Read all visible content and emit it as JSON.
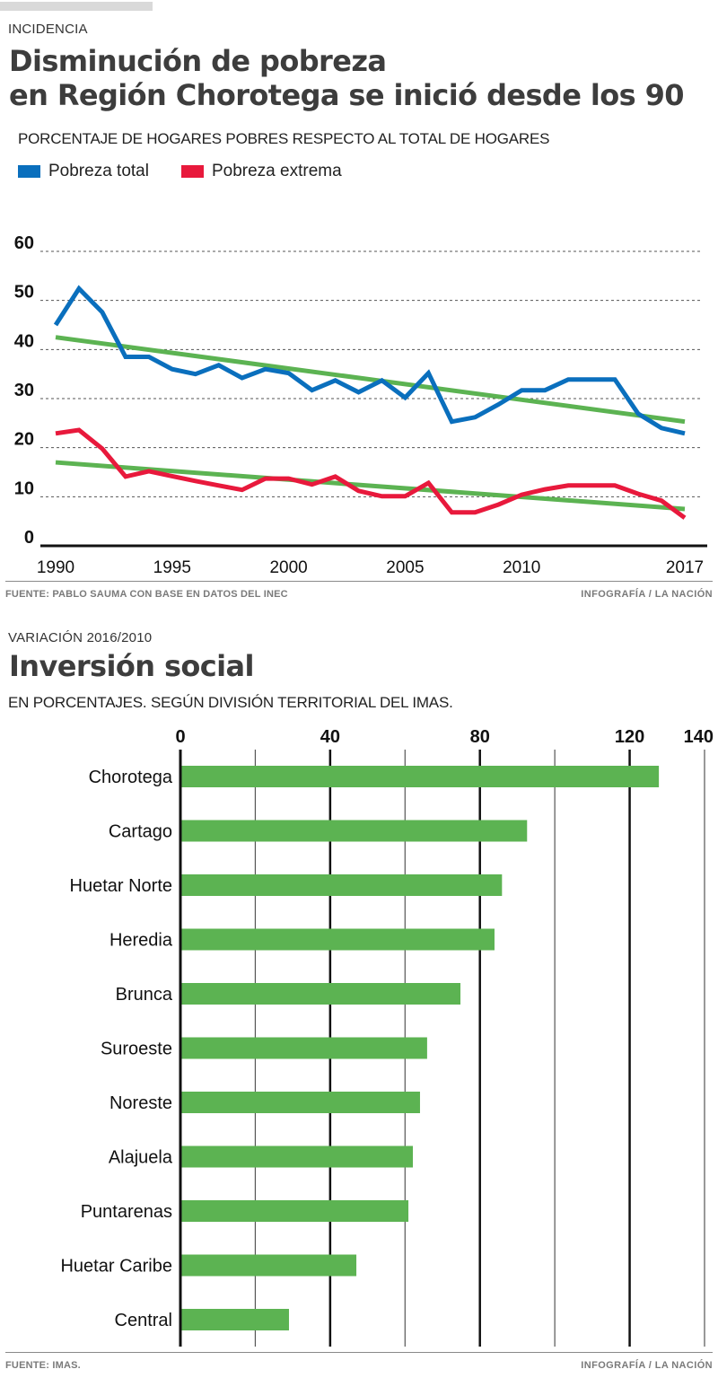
{
  "header": {
    "kicker": "INCIDENCIA",
    "title_line1": "Disminución de pobreza",
    "title_line2": "en Región Chorotega se inició desde los 90",
    "subtitle": "PORCENTAJE DE HOGARES POBRES RESPECTO AL TOTAL DE HOGARES"
  },
  "colors": {
    "total": "#0a6fbd",
    "extrema": "#e8193c",
    "trend": "#5cb352",
    "bar": "#5cb352"
  },
  "footer1": {
    "source": "FUENTE: PABLO SAUMA CON BASE EN DATOS DEL INEC",
    "credit": "INFOGRAFÍA / LA NACIÓN"
  },
  "section2": {
    "kicker": "VARIACIÓN 2016/2010",
    "title": "Inversión social",
    "subtitle": "EN PORCENTAJES. SEGÚN DIVISIÓN TERRITORIAL DEL IMAS."
  },
  "footer2": {
    "source": "FUENTE: IMAS.",
    "credit": "INFOGRAFÍA / LA NACIÓN"
  },
  "chart_data": [
    {
      "type": "line",
      "title": "PORCENTAJE DE HOGARES POBRES RESPECTO AL TOTAL DE HOGARES",
      "xlabel": "",
      "ylabel": "",
      "x": [
        1990,
        1991,
        1992,
        1993,
        1994,
        1995,
        1996,
        1997,
        1998,
        1999,
        2000,
        2001,
        2002,
        2003,
        2004,
        2005,
        2006,
        2007,
        2008,
        2009,
        2010,
        2011,
        2012,
        2013,
        2014,
        2015,
        2016,
        2017
      ],
      "xlim": [
        1990,
        2017
      ],
      "ylim": [
        0,
        60
      ],
      "xticks": [
        1990,
        1995,
        2000,
        2005,
        2010,
        2017
      ],
      "yticks": [
        0,
        10,
        20,
        30,
        40,
        50,
        60
      ],
      "grid": true,
      "legend_position": "top-left",
      "series": [
        {
          "name": "Pobreza total",
          "color": "#0a6fbd",
          "values": [
            45.0,
            52.4,
            47.6,
            38.5,
            38.5,
            36.0,
            35.0,
            36.8,
            34.2,
            36.0,
            35.2,
            31.7,
            33.7,
            31.3,
            33.7,
            30.2,
            35.2,
            25.3,
            26.2,
            28.8,
            31.7,
            31.7,
            33.9,
            33.9,
            33.9,
            26.9,
            24.0,
            22.9
          ]
        },
        {
          "name": "Pobreza extrema",
          "color": "#e8193c",
          "values": [
            22.9,
            23.6,
            19.8,
            14.1,
            15.2,
            14.2,
            13.2,
            12.3,
            11.4,
            13.7,
            13.7,
            12.5,
            14.1,
            11.2,
            10.1,
            10.1,
            12.8,
            6.8,
            6.8,
            8.4,
            10.4,
            11.5,
            12.3,
            12.3,
            12.3,
            10.6,
            9.2,
            5.7
          ]
        }
      ],
      "trendlines": [
        {
          "name": "Tendencia pobreza total",
          "color": "#5cb352",
          "x": [
            1990,
            2017
          ],
          "values": [
            42.5,
            25.3
          ]
        },
        {
          "name": "Tendencia pobreza extrema",
          "color": "#5cb352",
          "x": [
            1990,
            2017
          ],
          "values": [
            17.0,
            7.5
          ]
        }
      ]
    },
    {
      "type": "bar",
      "orientation": "horizontal",
      "title": "Inversión social",
      "subtitle": "EN PORCENTAJES. SEGÚN DIVISIÓN TERRITORIAL DEL IMAS.",
      "xlabel": "",
      "ylabel": "",
      "xlim": [
        0,
        140
      ],
      "xticks": [
        0,
        40,
        80,
        120,
        140
      ],
      "minor_gridlines": [
        20,
        60,
        100
      ],
      "grid": true,
      "categories": [
        "Chorotega",
        "Cartago",
        "Huetar Norte",
        "Heredia",
        "Brunca",
        "Suroeste",
        "Noreste",
        "Alajuela",
        "Puntarenas",
        "Huetar Caribe",
        "Central"
      ],
      "values": [
        127.8,
        92.6,
        85.9,
        83.9,
        74.8,
        65.9,
        64.0,
        62.1,
        60.9,
        47.0,
        29.0
      ],
      "color": "#5cb352"
    }
  ]
}
